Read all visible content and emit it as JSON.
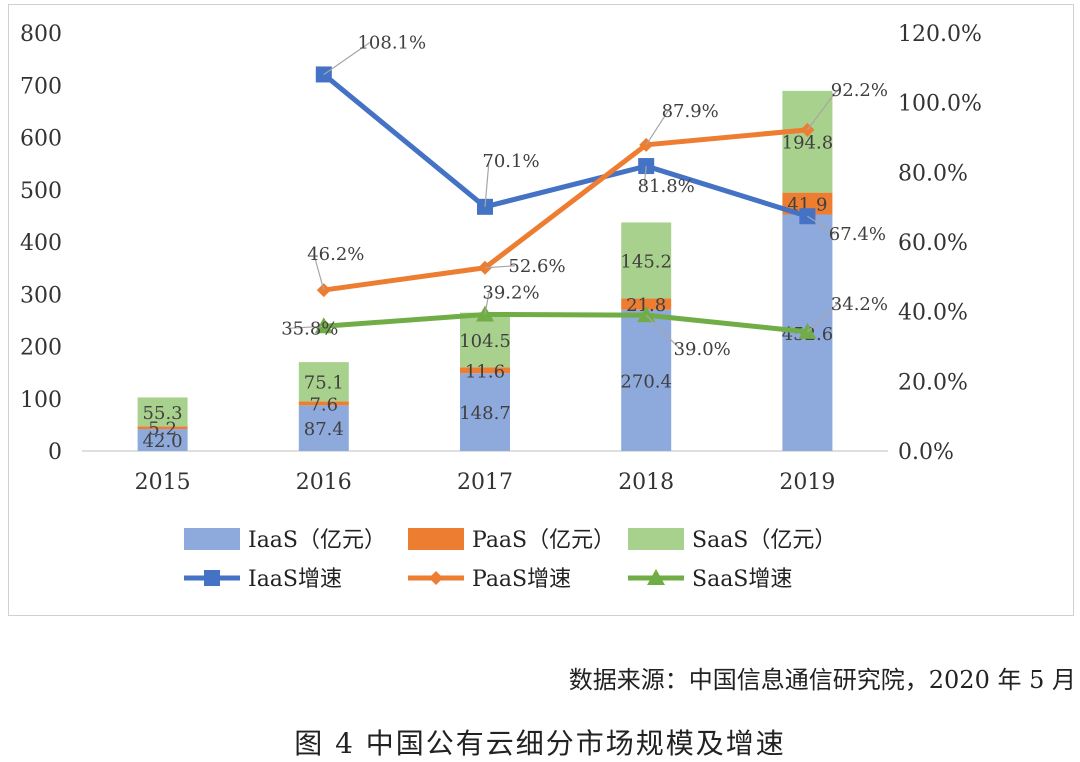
{
  "chart_data": {
    "type": "bar",
    "categories": [
      "2015",
      "2016",
      "2017",
      "2018",
      "2019"
    ],
    "series": [
      {
        "name": "IaaS（亿元）",
        "kind": "bar",
        "axis": "left",
        "color": "#8EA9DB",
        "values": [
          42.0,
          87.4,
          148.7,
          270.4,
          452.6
        ],
        "labels": [
          "42.0",
          "87.4",
          "148.7",
          "270.4",
          "452.6"
        ]
      },
      {
        "name": "PaaS（亿元）",
        "kind": "bar",
        "axis": "left",
        "color": "#ED7D31",
        "values": [
          5.2,
          7.6,
          11.6,
          21.8,
          41.9
        ],
        "labels": [
          "5.2",
          "7.6",
          "11.6",
          "21.8",
          "41.9"
        ]
      },
      {
        "name": "SaaS（亿元）",
        "kind": "bar",
        "axis": "left",
        "color": "#A9D18E",
        "values": [
          55.3,
          75.1,
          104.5,
          145.2,
          194.8
        ],
        "labels": [
          "55.3",
          "75.1",
          "104.5",
          "145.2",
          "194.8"
        ]
      },
      {
        "name": "IaaS增速",
        "kind": "line",
        "axis": "right",
        "marker": "square",
        "color": "#4472C4",
        "values": [
          null,
          108.1,
          70.1,
          81.8,
          67.4
        ],
        "labels": [
          null,
          "108.1%",
          "70.1%",
          "81.8%",
          "67.4%"
        ]
      },
      {
        "name": "PaaS增速",
        "kind": "line",
        "axis": "right",
        "marker": "diamond",
        "color": "#ED7D31",
        "values": [
          null,
          46.2,
          52.6,
          87.9,
          92.2
        ],
        "labels": [
          null,
          "46.2%",
          "52.6%",
          "87.9%",
          "92.2%"
        ]
      },
      {
        "name": "SaaS增速",
        "kind": "line",
        "axis": "right",
        "marker": "triangle",
        "color": "#70AD47",
        "values": [
          null,
          35.8,
          39.2,
          39.0,
          34.2
        ],
        "labels": [
          null,
          "35.8%",
          "39.2%",
          "39.0%",
          "34.2%"
        ]
      }
    ],
    "y_left": {
      "min": 0,
      "max": 800,
      "ticks": [
        "0",
        "100",
        "200",
        "300",
        "400",
        "500",
        "600",
        "700",
        "800"
      ]
    },
    "y_right": {
      "min": 0,
      "max": 120,
      "ticks": [
        "0.0%",
        "20.0%",
        "40.0%",
        "60.0%",
        "80.0%",
        "100.0%",
        "120.0%"
      ]
    },
    "stacked": true,
    "grid": false,
    "legend": "bottom"
  },
  "source_text": "数据来源：中国信息通信研究院，2020 年  5 月",
  "caption": "图  4 中国公有云细分市场规模及增速"
}
